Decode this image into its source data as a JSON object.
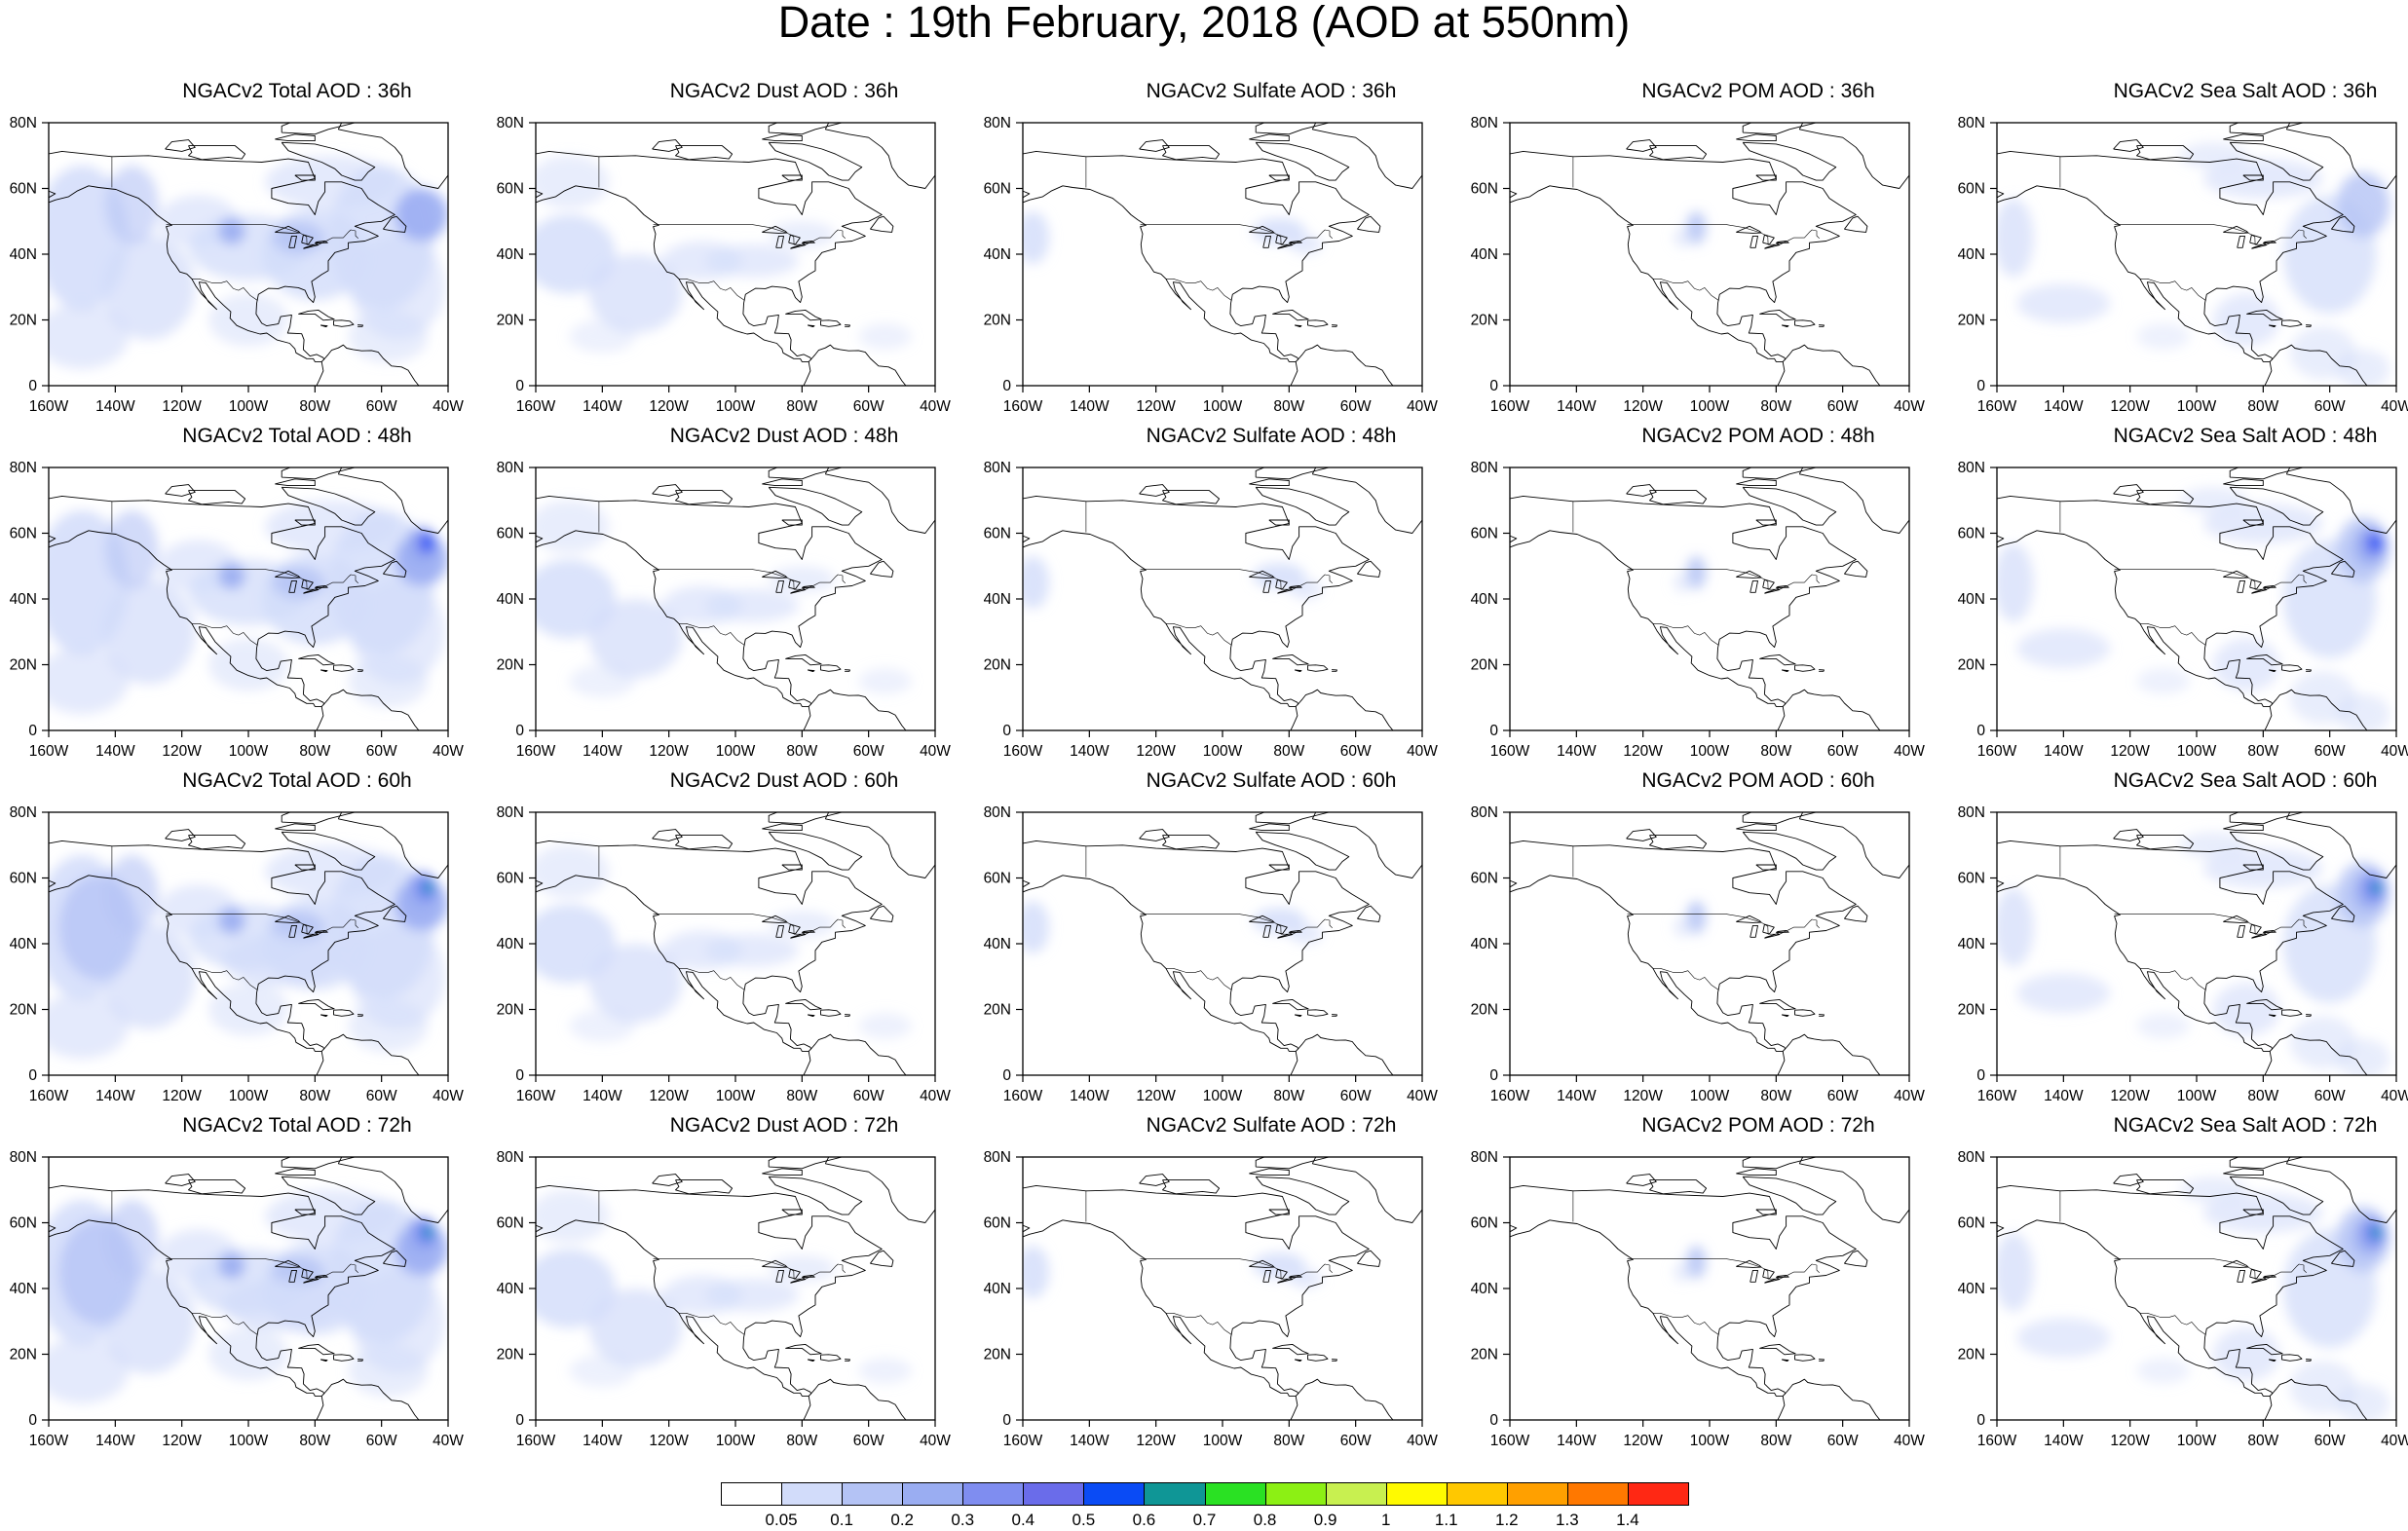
{
  "title": "Date : 19th February, 2018 (AOD at 550nm)",
  "x_ticks": [
    "160W",
    "140W",
    "120W",
    "100W",
    "80W",
    "60W",
    "40W"
  ],
  "y_ticks": [
    "0",
    "20N",
    "40N",
    "60N",
    "80N"
  ],
  "colors": {
    "levels": [
      "#ffffff",
      "#d2dcfa",
      "#b4c3f5",
      "#9aadf2",
      "#7f8df0",
      "#6a6cea",
      "#0a4bf5",
      "#0f9696",
      "#2ae123",
      "#8cf014",
      "#c8f050",
      "#fffa00",
      "#ffc800",
      "#ffa000",
      "#ff7800",
      "#ff2814"
    ],
    "land_line": "#000000"
  },
  "colorbar": {
    "labels": [
      "0.05",
      "0.1",
      "0.2",
      "0.3",
      "0.4",
      "0.5",
      "0.6",
      "0.7",
      "0.8",
      "0.9",
      "1",
      "1.1",
      "1.2",
      "1.3",
      "1.4"
    ]
  },
  "panels": [
    {
      "title": "NGACv2 Total AOD : 36h",
      "kind": "total",
      "level": 0.25
    },
    {
      "title": "NGACv2 Dust AOD : 36h",
      "kind": "dust",
      "level": 0.1
    },
    {
      "title": "NGACv2 Sulfate AOD : 36h",
      "kind": "sulfate",
      "level": 0.08
    },
    {
      "title": "NGACv2 POM AOD : 36h",
      "kind": "pom",
      "level": 0.06
    },
    {
      "title": "NGACv2 Sea Salt AOD : 36h",
      "kind": "seasalt",
      "level": 0.15
    },
    {
      "title": "NGACv2 Total AOD : 48h",
      "kind": "total",
      "level": 0.3
    },
    {
      "title": "NGACv2 Dust AOD : 48h",
      "kind": "dust",
      "level": 0.1
    },
    {
      "title": "NGACv2 Sulfate AOD : 48h",
      "kind": "sulfate",
      "level": 0.08
    },
    {
      "title": "NGACv2 POM AOD : 48h",
      "kind": "pom",
      "level": 0.06
    },
    {
      "title": "NGACv2 Sea Salt AOD : 48h",
      "kind": "seasalt",
      "level": 0.2
    },
    {
      "title": "NGACv2 Total AOD : 60h",
      "kind": "total",
      "level": 0.35
    },
    {
      "title": "NGACv2 Dust AOD : 60h",
      "kind": "dust",
      "level": 0.1
    },
    {
      "title": "NGACv2 Sulfate AOD : 60h",
      "kind": "sulfate",
      "level": 0.08
    },
    {
      "title": "NGACv2 POM AOD : 60h",
      "kind": "pom",
      "level": 0.06
    },
    {
      "title": "NGACv2 Sea Salt AOD : 60h",
      "kind": "seasalt",
      "level": 0.25
    },
    {
      "title": "NGACv2 Total AOD : 72h",
      "kind": "total",
      "level": 0.35
    },
    {
      "title": "NGACv2 Dust AOD : 72h",
      "kind": "dust",
      "level": 0.1
    },
    {
      "title": "NGACv2 Sulfate AOD : 72h",
      "kind": "sulfate",
      "level": 0.08
    },
    {
      "title": "NGACv2 POM AOD : 72h",
      "kind": "pom",
      "level": 0.06
    },
    {
      "title": "NGACv2 Sea Salt  AOD : 72h",
      "kind": "seasalt",
      "level": 0.25
    }
  ]
}
